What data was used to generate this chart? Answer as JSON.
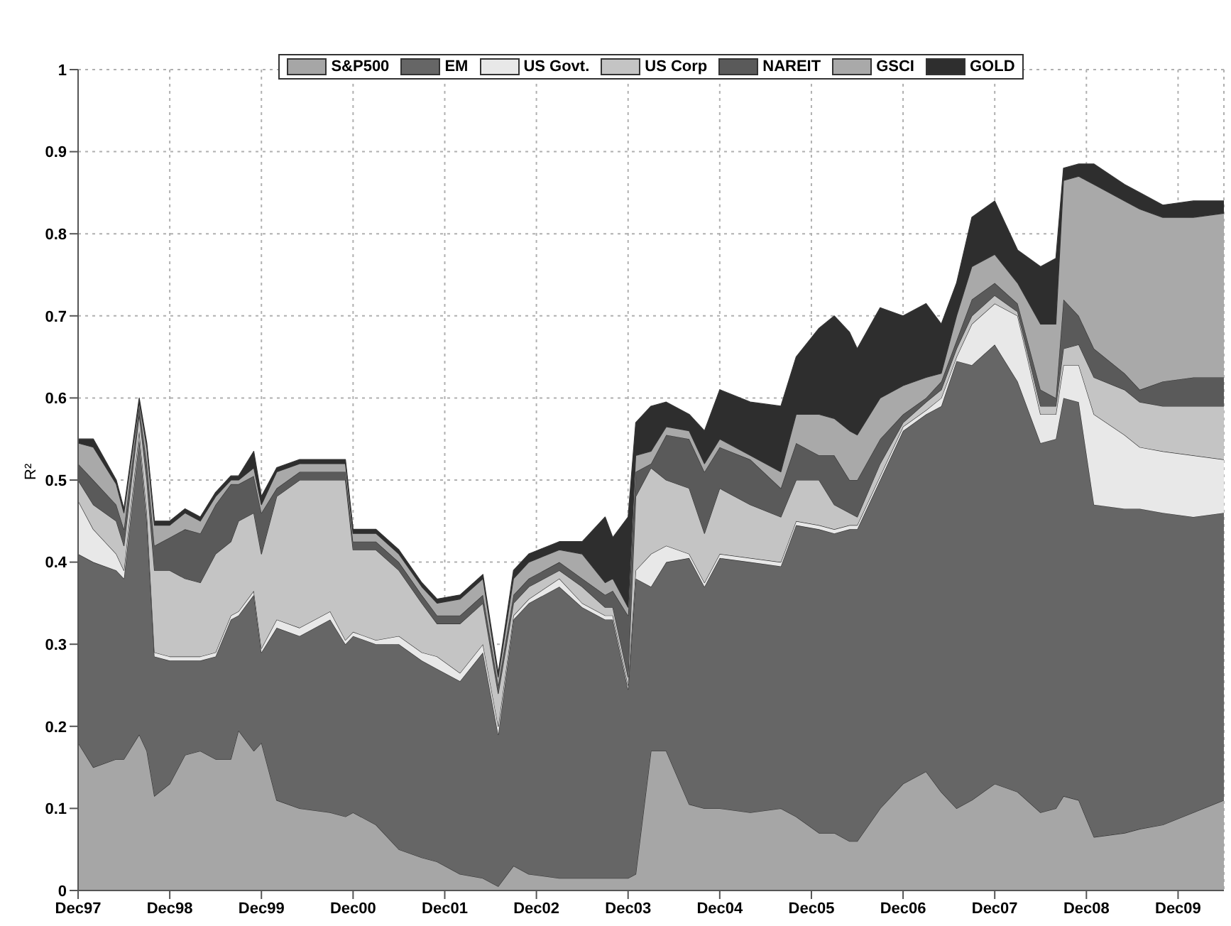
{
  "chart_data": {
    "type": "area",
    "stacked": true,
    "ylabel": "R²",
    "x": [
      "1997-12",
      "1998-02",
      "1998-05",
      "1998-06",
      "1998-08",
      "1998-09",
      "1998-10",
      "1998-12",
      "1999-02",
      "1999-04",
      "1999-06",
      "1999-08",
      "1999-09",
      "1999-11",
      "1999-12",
      "2000-02",
      "2000-05",
      "2000-09",
      "2000-11",
      "2000-12",
      "2001-03",
      "2001-06",
      "2001-09",
      "2001-11",
      "2002-02",
      "2002-05",
      "2002-07",
      "2002-09",
      "2002-11",
      "2003-03",
      "2003-06",
      "2003-09",
      "2003-10",
      "2003-12",
      "2004-01",
      "2004-03",
      "2004-05",
      "2004-08",
      "2004-10",
      "2004-12",
      "2005-04",
      "2005-08",
      "2005-10",
      "2006-01",
      "2006-03",
      "2006-05",
      "2006-06",
      "2006-09",
      "2006-12",
      "2007-03",
      "2007-05",
      "2007-07",
      "2007-09",
      "2007-12",
      "2008-03",
      "2008-06",
      "2008-08",
      "2008-09",
      "2008-11",
      "2009-01",
      "2009-05",
      "2009-07",
      "2009-10",
      "2010-02",
      "2010-06"
    ],
    "series": [
      {
        "name": "S&P500",
        "color": "#a6a6a6",
        "values": [
          0.18,
          0.15,
          0.16,
          0.16,
          0.19,
          0.17,
          0.115,
          0.13,
          0.165,
          0.17,
          0.16,
          0.16,
          0.195,
          0.17,
          0.18,
          0.11,
          0.1,
          0.095,
          0.09,
          0.095,
          0.08,
          0.05,
          0.04,
          0.035,
          0.02,
          0.015,
          0.005,
          0.03,
          0.02,
          0.015,
          0.015,
          0.015,
          0.015,
          0.015,
          0.02,
          0.17,
          0.17,
          0.105,
          0.1,
          0.1,
          0.095,
          0.1,
          0.09,
          0.07,
          0.07,
          0.06,
          0.06,
          0.1,
          0.13,
          0.145,
          0.12,
          0.1,
          0.11,
          0.13,
          0.12,
          0.095,
          0.1,
          0.115,
          0.11,
          0.065,
          0.07,
          0.075,
          0.08,
          0.095,
          0.11
        ]
      },
      {
        "name": "EM",
        "color": "#666666",
        "values": [
          0.23,
          0.25,
          0.23,
          0.22,
          0.36,
          0.28,
          0.17,
          0.15,
          0.115,
          0.11,
          0.125,
          0.17,
          0.14,
          0.19,
          0.11,
          0.21,
          0.21,
          0.235,
          0.21,
          0.215,
          0.22,
          0.25,
          0.24,
          0.235,
          0.235,
          0.275,
          0.185,
          0.3,
          0.33,
          0.355,
          0.33,
          0.315,
          0.315,
          0.23,
          0.36,
          0.2,
          0.23,
          0.3,
          0.27,
          0.305,
          0.305,
          0.295,
          0.355,
          0.37,
          0.365,
          0.38,
          0.38,
          0.4,
          0.43,
          0.435,
          0.47,
          0.545,
          0.53,
          0.535,
          0.5,
          0.45,
          0.45,
          0.485,
          0.485,
          0.405,
          0.395,
          0.39,
          0.38,
          0.36,
          0.35
        ]
      },
      {
        "name": "US Govt.",
        "color": "#e8e8e8",
        "values": [
          0.065,
          0.04,
          0.02,
          0.01,
          0.01,
          0.01,
          0.005,
          0.005,
          0.005,
          0.005,
          0.005,
          0.005,
          0.005,
          0.005,
          0.005,
          0.01,
          0.01,
          0.01,
          0.005,
          0.005,
          0.005,
          0.01,
          0.01,
          0.015,
          0.01,
          0.01,
          0.01,
          0.005,
          0.005,
          0.01,
          0.005,
          0.005,
          0.005,
          0.005,
          0.01,
          0.04,
          0.02,
          0.005,
          0.005,
          0.005,
          0.005,
          0.005,
          0.005,
          0.005,
          0.005,
          0.005,
          0.005,
          0.005,
          0.005,
          0.005,
          0.01,
          0.005,
          0.05,
          0.05,
          0.08,
          0.035,
          0.03,
          0.04,
          0.045,
          0.11,
          0.09,
          0.075,
          0.075,
          0.075,
          0.065
        ]
      },
      {
        "name": "US Corp",
        "color": "#c4c4c4",
        "values": [
          0.025,
          0.03,
          0.04,
          0.03,
          0.02,
          0.04,
          0.1,
          0.105,
          0.095,
          0.09,
          0.12,
          0.09,
          0.11,
          0.095,
          0.115,
          0.15,
          0.18,
          0.16,
          0.195,
          0.1,
          0.11,
          0.08,
          0.06,
          0.04,
          0.06,
          0.05,
          0.04,
          0.015,
          0.015,
          0.01,
          0.02,
          0.01,
          0.01,
          0.01,
          0.09,
          0.105,
          0.08,
          0.08,
          0.06,
          0.08,
          0.065,
          0.055,
          0.05,
          0.055,
          0.03,
          0.015,
          0.01,
          0.015,
          0.005,
          0.01,
          0.01,
          0.01,
          0.01,
          0.01,
          0.005,
          0.01,
          0.01,
          0.02,
          0.025,
          0.045,
          0.055,
          0.055,
          0.055,
          0.06,
          0.065
        ]
      },
      {
        "name": "NAREIT",
        "color": "#5a5a5a",
        "values": [
          0.02,
          0.03,
          0.02,
          0.02,
          0.01,
          0.02,
          0.03,
          0.04,
          0.06,
          0.06,
          0.06,
          0.07,
          0.045,
          0.045,
          0.05,
          0.01,
          0.01,
          0.01,
          0.01,
          0.01,
          0.01,
          0.01,
          0.01,
          0.01,
          0.01,
          0.01,
          0.01,
          0.01,
          0.01,
          0.01,
          0.01,
          0.015,
          0.02,
          0.075,
          0.03,
          0.005,
          0.055,
          0.06,
          0.075,
          0.05,
          0.055,
          0.035,
          0.045,
          0.03,
          0.06,
          0.04,
          0.045,
          0.03,
          0.01,
          0.005,
          0.01,
          0.01,
          0.02,
          0.015,
          0.01,
          0.02,
          0.01,
          0.06,
          0.035,
          0.035,
          0.02,
          0.015,
          0.03,
          0.035,
          0.035
        ]
      },
      {
        "name": "GSCI",
        "color": "#a9a9a9",
        "values": [
          0.025,
          0.04,
          0.025,
          0.02,
          0.005,
          0.02,
          0.025,
          0.015,
          0.02,
          0.015,
          0.01,
          0.005,
          0.005,
          0.01,
          0.01,
          0.02,
          0.01,
          0.01,
          0.01,
          0.01,
          0.01,
          0.01,
          0.01,
          0.015,
          0.02,
          0.02,
          0.01,
          0.02,
          0.02,
          0.015,
          0.03,
          0.015,
          0.015,
          0.01,
          0.02,
          0.015,
          0.01,
          0.01,
          0.01,
          0.01,
          0.005,
          0.02,
          0.035,
          0.05,
          0.045,
          0.06,
          0.055,
          0.05,
          0.035,
          0.025,
          0.01,
          0.03,
          0.04,
          0.035,
          0.025,
          0.08,
          0.09,
          0.145,
          0.17,
          0.2,
          0.21,
          0.22,
          0.2,
          0.195,
          0.2
        ]
      },
      {
        "name": "GOLD",
        "color": "#2e2e2e",
        "values": [
          0.005,
          0.01,
          0.005,
          0.005,
          0.005,
          0.005,
          0.005,
          0.005,
          0.005,
          0.005,
          0.005,
          0.005,
          0.005,
          0.02,
          0.01,
          0.005,
          0.005,
          0.005,
          0.005,
          0.005,
          0.005,
          0.005,
          0.005,
          0.005,
          0.005,
          0.005,
          0.005,
          0.01,
          0.01,
          0.01,
          0.015,
          0.08,
          0.05,
          0.11,
          0.04,
          0.055,
          0.03,
          0.02,
          0.04,
          0.06,
          0.065,
          0.08,
          0.07,
          0.105,
          0.125,
          0.12,
          0.105,
          0.11,
          0.085,
          0.09,
          0.06,
          0.04,
          0.06,
          0.065,
          0.04,
          0.07,
          0.08,
          0.015,
          0.015,
          0.025,
          0.02,
          0.02,
          0.015,
          0.02,
          0.015
        ]
      }
    ],
    "xlim": [
      "1997-12",
      "2010-06"
    ],
    "xticks": [
      {
        "value": "1997-12",
        "label": "Dec97"
      },
      {
        "value": "1998-12",
        "label": "Dec98"
      },
      {
        "value": "1999-12",
        "label": "Dec99"
      },
      {
        "value": "2000-12",
        "label": "Dec00"
      },
      {
        "value": "2001-12",
        "label": "Dec01"
      },
      {
        "value": "2002-12",
        "label": "Dec02"
      },
      {
        "value": "2003-12",
        "label": "Dec03"
      },
      {
        "value": "2004-12",
        "label": "Dec04"
      },
      {
        "value": "2005-12",
        "label": "Dec05"
      },
      {
        "value": "2006-12",
        "label": "Dec06"
      },
      {
        "value": "2007-12",
        "label": "Dec07"
      },
      {
        "value": "2008-12",
        "label": "Dec08"
      },
      {
        "value": "2009-12",
        "label": "Dec09"
      }
    ],
    "ylim": [
      0,
      1
    ],
    "yticks": [
      0,
      0.1,
      0.2,
      0.3,
      0.4,
      0.5,
      0.6,
      0.7,
      0.8,
      0.9,
      1
    ],
    "grid": true,
    "legend": "top"
  }
}
